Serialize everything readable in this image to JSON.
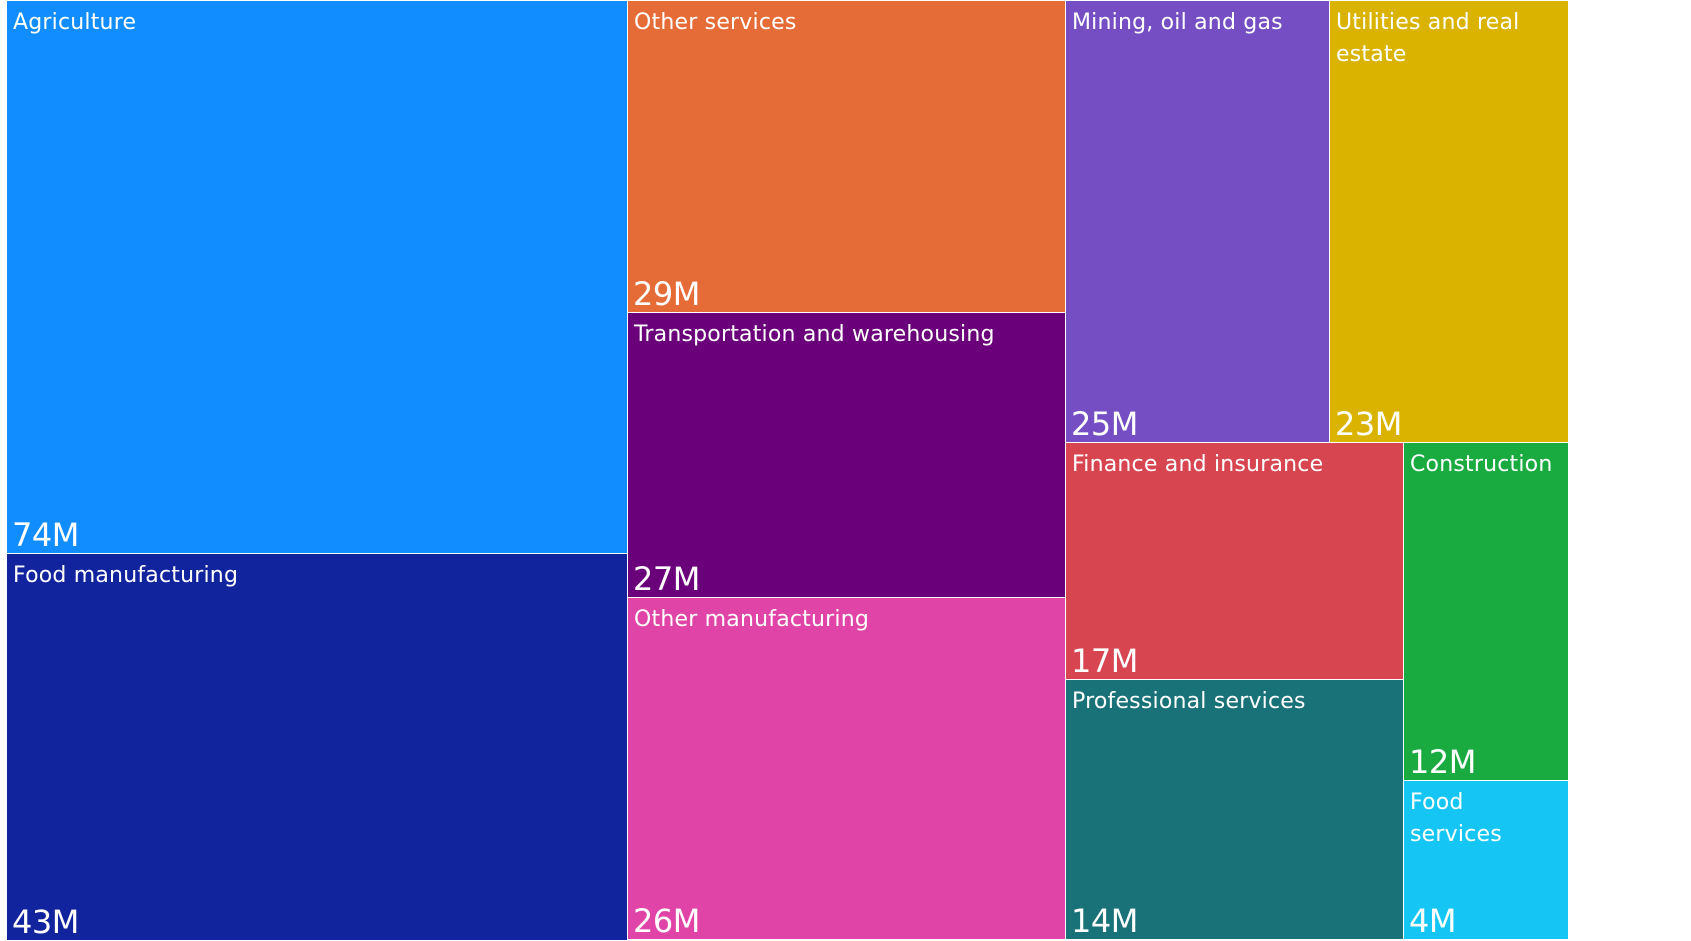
{
  "chart_data": {
    "type": "treemap",
    "title": "",
    "items": [
      {
        "name": "Agriculture",
        "value": 74,
        "label": "74M",
        "color": "#118DFF"
      },
      {
        "name": "Food manufacturing",
        "value": 43,
        "label": "43M",
        "color": "#12239E"
      },
      {
        "name": "Other services",
        "value": 29,
        "label": "29M",
        "color": "#E66C37"
      },
      {
        "name": "Transportation and warehousing",
        "value": 27,
        "label": "27M",
        "color": "#6B007B"
      },
      {
        "name": "Other manufacturing",
        "value": 26,
        "label": "26M",
        "color": "#E044A7"
      },
      {
        "name": "Mining, oil and gas",
        "value": 25,
        "label": "25M",
        "color": "#744EC2"
      },
      {
        "name": "Utilities and real estate",
        "value": 23,
        "label": "23M",
        "color": "#D9B300"
      },
      {
        "name": "Finance and insurance",
        "value": 17,
        "label": "17M",
        "color": "#D64550"
      },
      {
        "name": "Professional services",
        "value": 14,
        "label": "14M",
        "color": "#197278"
      },
      {
        "name": "Construction",
        "value": 12,
        "label": "12M",
        "color": "#1AAB40"
      },
      {
        "name": "Food services",
        "value": 4,
        "label": "4M",
        "color": "#15C6F4"
      }
    ]
  }
}
